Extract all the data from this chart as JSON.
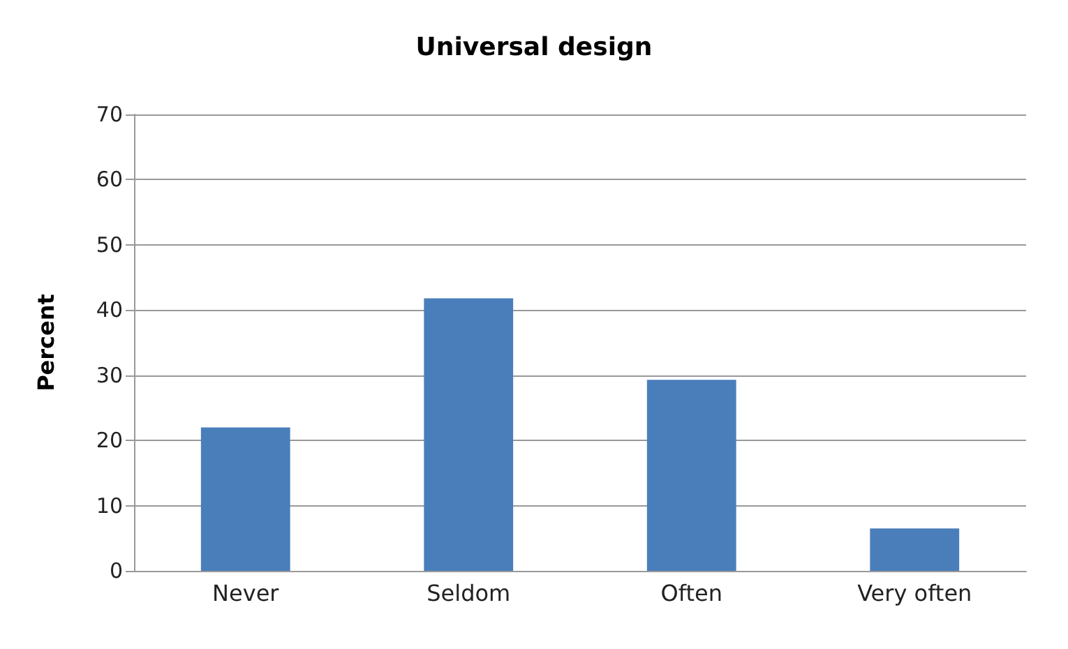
{
  "chart_data": {
    "type": "bar",
    "title": "Universal design",
    "ylabel": "Percent",
    "categories": [
      "Never",
      "Seldom",
      "Often",
      "Very often"
    ],
    "values": [
      22,
      41.8,
      29.3,
      6.5
    ],
    "color": "#4a7ebb",
    "ylim": [
      0,
      70
    ],
    "yticks": [
      0,
      10,
      20,
      30,
      40,
      50,
      60,
      70
    ],
    "grid": "y"
  }
}
